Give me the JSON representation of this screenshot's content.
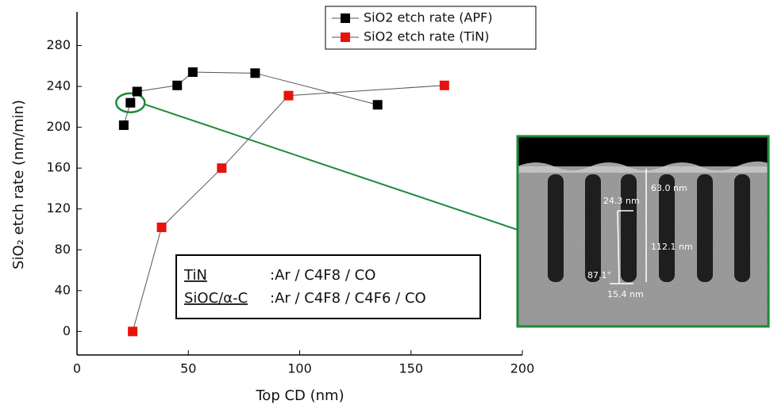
{
  "chart_data": {
    "type": "line",
    "x_label": "Top CD (nm)",
    "y_label": "SiO₂ etch rate (nm/min)",
    "xlim": [
      0,
      200
    ],
    "ylim": [
      -23,
      313
    ],
    "xticks": [
      0,
      50,
      100,
      150,
      200
    ],
    "yticks": [
      0,
      40,
      80,
      120,
      160,
      200,
      240,
      280
    ],
    "legend": "top-right",
    "series": [
      {
        "name": "SiO2 etch rate (APF)",
        "color": "#000000",
        "line_color": "#555555",
        "x": [
          21,
          24,
          27,
          45,
          52,
          80,
          135
        ],
        "values": [
          202,
          224,
          235,
          241,
          254,
          253,
          222
        ]
      },
      {
        "name": "SiO2 etch rate (TiN)",
        "color": "#e8120c",
        "line_color": "#555555",
        "x": [
          25,
          38,
          65,
          95,
          165
        ],
        "values": [
          0,
          102,
          160,
          231,
          241
        ]
      }
    ],
    "annotation": {
      "rows": [
        [
          "TiN",
          ":Ar / C4F8 / CO"
        ],
        [
          "SiOC/α-C",
          ":Ar / C4F8 / C4F6 / CO"
        ]
      ]
    },
    "inset_labels": [
      "63.0 nm",
      "24.3 nm",
      "112.1 nm",
      "87.1°",
      "15.4 nm"
    ]
  }
}
